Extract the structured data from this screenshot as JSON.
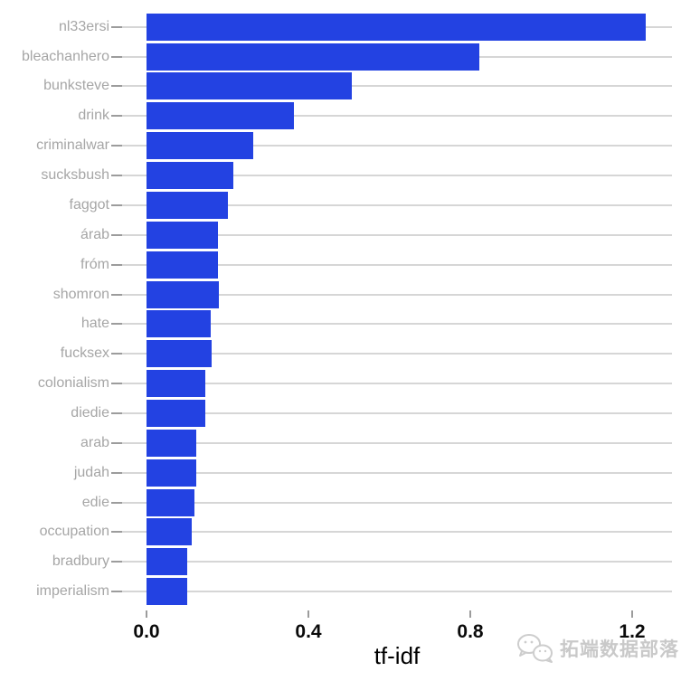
{
  "chart_data": {
    "type": "bar",
    "orientation": "horizontal",
    "title": "",
    "xlabel": "tf-idf",
    "ylabel": "",
    "categories": [
      "nl33ersi",
      "bleachanhero",
      "bunksteve",
      "drink",
      "criminalwar",
      "sucksbush",
      "faggot",
      "árab",
      "fróm",
      "shomron",
      "hate",
      "fucksex",
      "colonialism",
      "diedie",
      "arab",
      "judah",
      "edie",
      "occupation",
      "bradbury",
      "imperialism"
    ],
    "values": [
      1.233,
      0.822,
      0.507,
      0.364,
      0.263,
      0.215,
      0.201,
      0.177,
      0.177,
      0.178,
      0.159,
      0.161,
      0.146,
      0.145,
      0.123,
      0.123,
      0.118,
      0.112,
      0.101,
      0.1
    ],
    "x_ticks": [
      0.0,
      0.4,
      0.8,
      1.2
    ],
    "x_tick_labels": [
      "0.0",
      "0.4",
      "0.8",
      "1.2"
    ],
    "xlim": [
      -0.062,
      1.298
    ],
    "grid": "horizontal-major-only",
    "legend": "none",
    "colors": {
      "bar": "#2342E2",
      "gridline": "#D6D6D6",
      "axis_tick": "#9C9C9C",
      "y_label": "#A6A6A6",
      "x_tick_label": "#0A0A0A",
      "axis_title": "#000000",
      "background": "#FFFFFF"
    }
  },
  "watermark": {
    "icon": "speech-bubbles-icon",
    "text": "拓端数据部落",
    "color": "#C9C9C9"
  }
}
